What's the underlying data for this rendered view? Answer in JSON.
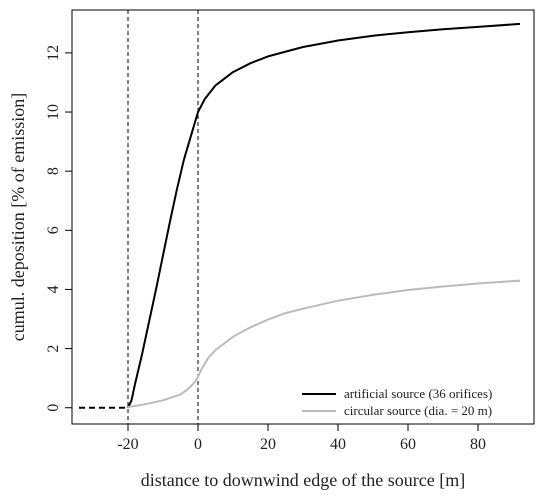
{
  "chart_data": {
    "type": "line",
    "title": "",
    "xlabel": "distance to downwind edge of the source [m]",
    "ylabel": "cumul. deposition [% of emission]",
    "xlim": [
      -36,
      96
    ],
    "ylim": [
      -0.55,
      13.45
    ],
    "xticks": [
      -20,
      0,
      20,
      40,
      60,
      80
    ],
    "xtick_labels": [
      "-20",
      "0",
      "20",
      "40",
      "60",
      "80"
    ],
    "yticks": [
      0,
      2,
      4,
      6,
      8,
      10,
      12
    ],
    "ytick_labels": [
      "0",
      "2",
      "4",
      "6",
      "8",
      "10",
      "12"
    ],
    "grid": false,
    "legend_position": "bottom-right",
    "vlines": [
      -20,
      0
    ],
    "series": [
      {
        "name": "artificial source (36 orifices)",
        "color": "#000000",
        "x": [
          -20,
          -19,
          -18,
          -16,
          -14,
          -12,
          -10,
          -8,
          -6,
          -4,
          -2,
          0,
          2,
          5,
          10,
          15,
          20,
          30,
          40,
          50,
          60,
          70,
          80,
          92
        ],
        "y": [
          0.0,
          0.25,
          0.8,
          1.8,
          2.9,
          4.0,
          5.15,
          6.3,
          7.4,
          8.4,
          9.2,
          10.0,
          10.45,
          10.9,
          11.35,
          11.65,
          11.88,
          12.2,
          12.42,
          12.58,
          12.7,
          12.8,
          12.88,
          12.98
        ]
      },
      {
        "name": "circular source (dia. = 20 m)",
        "color": "#bbbbbb",
        "x": [
          -20,
          -15,
          -10,
          -5,
          -3,
          -1,
          0,
          1,
          3,
          5,
          10,
          15,
          20,
          25,
          30,
          40,
          50,
          60,
          70,
          80,
          92
        ],
        "y": [
          0.02,
          0.12,
          0.25,
          0.45,
          0.62,
          0.85,
          1.05,
          1.3,
          1.7,
          1.95,
          2.4,
          2.72,
          2.98,
          3.2,
          3.35,
          3.62,
          3.82,
          3.98,
          4.1,
          4.2,
          4.3
        ]
      },
      {
        "name": "",
        "color": "#000000",
        "dashed": true,
        "x": [
          -34,
          -20
        ],
        "y": [
          0,
          0
        ]
      }
    ]
  }
}
